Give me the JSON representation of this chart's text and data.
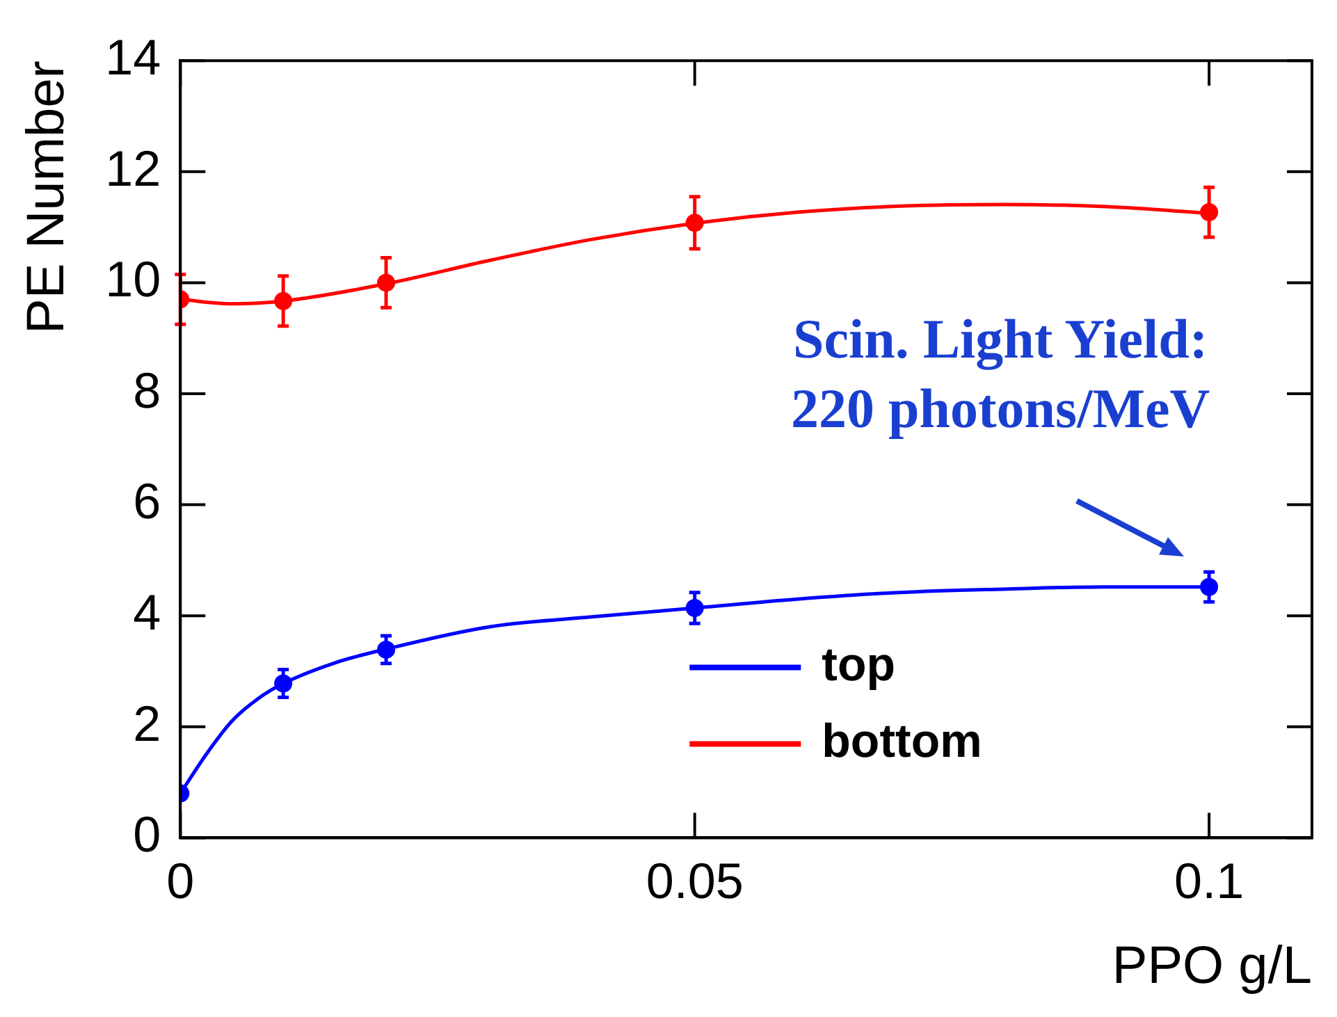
{
  "chart_data": {
    "type": "scatter",
    "xlabel": "PPO g/L",
    "ylabel": "PE Number",
    "xlim": [
      0,
      0.11
    ],
    "xticks": [
      0,
      0.05,
      0.1
    ],
    "ylim": [
      0,
      14
    ],
    "yticks": [
      0,
      2,
      4,
      6,
      8,
      10,
      12,
      14
    ],
    "grid": false,
    "legend": "bottom right",
    "annotations": [
      {
        "text": "Scin. Light Yield:\n220 photons/MeV",
        "x": 0.1,
        "y": 4.52
      }
    ],
    "series": [
      {
        "name": "top",
        "color": "#0000ff",
        "type": "scatter",
        "marker": "circle",
        "x": [
          0,
          0.01,
          0.02,
          0.05,
          0.1
        ],
        "values": [
          0.8,
          2.78,
          3.39,
          4.14,
          4.52
        ],
        "errors": [
          null,
          0.25,
          0.25,
          0.28,
          0.27
        ]
      },
      {
        "name": "bottom",
        "color": "#ff0000",
        "type": "scatter",
        "marker": "circle",
        "x": [
          0,
          0.01,
          0.02,
          0.05,
          0.1
        ],
        "values": [
          9.7,
          9.67,
          10.0,
          11.08,
          11.27
        ],
        "errors": [
          0.45,
          0.45,
          0.45,
          0.47,
          0.45
        ]
      },
      {
        "color": "#0000ff",
        "type": "line",
        "marker": "none",
        "x": [
          0,
          0.0025,
          0.005,
          0.0075,
          0.01,
          0.015,
          0.02,
          0.03,
          0.04,
          0.05,
          0.06,
          0.07,
          0.08,
          0.09,
          0.1
        ],
        "values": [
          0.8,
          1.5,
          2.1,
          2.5,
          2.78,
          3.15,
          3.4,
          3.8,
          3.98,
          4.14,
          4.3,
          4.42,
          4.48,
          4.52,
          4.52
        ]
      },
      {
        "color": "#ff0000",
        "type": "line",
        "marker": "none",
        "x": [
          0,
          0.005,
          0.01,
          0.02,
          0.03,
          0.04,
          0.05,
          0.06,
          0.07,
          0.08,
          0.09,
          0.1
        ],
        "values": [
          9.7,
          9.62,
          9.67,
          9.98,
          10.4,
          10.78,
          11.07,
          11.27,
          11.38,
          11.41,
          11.37,
          11.25
        ]
      }
    ]
  }
}
